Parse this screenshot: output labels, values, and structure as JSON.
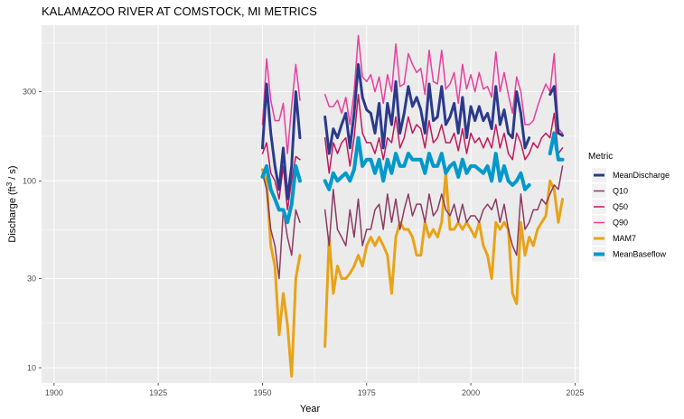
{
  "chart_data": {
    "type": "line",
    "title": "KALAMAZOO RIVER AT COMSTOCK, MI  METRICS",
    "xlabel": "Year",
    "ylabel_main": "Discharge (ft",
    "ylabel_sup": "3",
    "ylabel_tail": " / s)",
    "xlim": [
      1897,
      2026
    ],
    "ylim": [
      8.3,
      680
    ],
    "y_scale": "log",
    "x_ticks": [
      1900,
      1925,
      1950,
      1975,
      2000,
      2025
    ],
    "x_tick_labels": [
      "1900",
      "1925",
      "1950",
      "1975",
      "2000",
      "2025"
    ],
    "y_ticks": [
      10,
      30,
      100,
      300
    ],
    "y_tick_labels": [
      "10",
      "30",
      "100",
      "300"
    ],
    "grid": true,
    "background": "#ebebeb",
    "legend_title": "Metric",
    "legend_position": "right",
    "x": [
      1950,
      1951,
      1952,
      1953,
      1954,
      1955,
      1956,
      1957,
      1958,
      1959,
      1960,
      1961,
      1962,
      1963,
      1964,
      1965,
      1966,
      1967,
      1968,
      1969,
      1970,
      1971,
      1972,
      1973,
      1974,
      1975,
      1976,
      1977,
      1978,
      1979,
      1980,
      1981,
      1982,
      1983,
      1984,
      1985,
      1986,
      1987,
      1988,
      1989,
      1990,
      1991,
      1992,
      1993,
      1994,
      1995,
      1996,
      1997,
      1998,
      1999,
      2000,
      2001,
      2002,
      2003,
      2004,
      2005,
      2006,
      2007,
      2008,
      2009,
      2010,
      2011,
      2012,
      2013,
      2014,
      2015,
      2016,
      2017,
      2018,
      2019,
      2020,
      2021,
      2022
    ],
    "series": [
      {
        "name": "MeanDischarge",
        "color": "#2b3a8b",
        "width": 3,
        "values": [
          150,
          330,
          180,
          120,
          90,
          150,
          80,
          120,
          300,
          170,
          null,
          null,
          null,
          null,
          null,
          220,
          140,
          190,
          170,
          200,
          230,
          150,
          230,
          420,
          280,
          240,
          230,
          180,
          260,
          150,
          260,
          200,
          340,
          180,
          230,
          320,
          250,
          280,
          240,
          180,
          330,
          210,
          220,
          320,
          200,
          220,
          260,
          180,
          280,
          170,
          250,
          210,
          250,
          210,
          230,
          190,
          320,
          200,
          240,
          180,
          170,
          300,
          230,
          150,
          170,
          null,
          null,
          null,
          null,
          290,
          320,
          180,
          175
        ]
      },
      {
        "name": "Q10",
        "color": "#8b3a62",
        "width": 1.5,
        "values": [
          110,
          90,
          55,
          45,
          30,
          70,
          50,
          40,
          70,
          60,
          null,
          null,
          null,
          null,
          null,
          70,
          45,
          90,
          55,
          50,
          45,
          70,
          50,
          80,
          45,
          55,
          55,
          70,
          75,
          55,
          85,
          60,
          80,
          55,
          70,
          85,
          65,
          75,
          75,
          60,
          85,
          65,
          70,
          85,
          70,
          65,
          75,
          60,
          75,
          60,
          65,
          65,
          60,
          70,
          75,
          70,
          80,
          60,
          75,
          55,
          45,
          40,
          85,
          55,
          60,
          70,
          70,
          80,
          75,
          85,
          95,
          90,
          120
        ]
      },
      {
        "name": "Q50",
        "color": "#c2185b",
        "width": 1.5,
        "values": [
          140,
          160,
          110,
          100,
          80,
          120,
          70,
          100,
          135,
          130,
          null,
          null,
          null,
          null,
          null,
          170,
          110,
          160,
          140,
          160,
          170,
          120,
          170,
          290,
          180,
          160,
          160,
          140,
          170,
          130,
          170,
          160,
          220,
          150,
          170,
          220,
          180,
          200,
          190,
          150,
          210,
          160,
          170,
          200,
          160,
          160,
          180,
          145,
          190,
          140,
          180,
          160,
          170,
          150,
          170,
          150,
          200,
          150,
          180,
          140,
          130,
          180,
          160,
          130,
          140,
          160,
          150,
          170,
          180,
          170,
          230,
          140,
          150
        ]
      },
      {
        "name": "Q90",
        "color": "#e83e9e",
        "width": 1.5,
        "values": [
          200,
          450,
          270,
          210,
          210,
          260,
          140,
          250,
          420,
          270,
          null,
          null,
          null,
          null,
          null,
          290,
          250,
          250,
          270,
          230,
          280,
          200,
          300,
          600,
          360,
          340,
          370,
          300,
          360,
          260,
          370,
          300,
          540,
          320,
          330,
          480,
          420,
          380,
          400,
          290,
          500,
          340,
          330,
          500,
          310,
          330,
          380,
          260,
          420,
          310,
          370,
          300,
          380,
          310,
          320,
          280,
          490,
          300,
          380,
          290,
          230,
          360,
          300,
          200,
          200,
          210,
          250,
          290,
          330,
          300,
          480,
          190,
          180
        ]
      },
      {
        "name": "MAM7",
        "color": "#e8a317",
        "width": 3,
        "values": [
          115,
          100,
          45,
          35,
          15,
          25,
          17,
          9,
          30,
          40,
          null,
          null,
          null,
          null,
          null,
          13,
          50,
          25,
          35,
          30,
          30,
          32,
          35,
          40,
          35,
          45,
          50,
          45,
          50,
          45,
          40,
          25,
          50,
          60,
          55,
          55,
          50,
          40,
          40,
          60,
          50,
          55,
          50,
          60,
          110,
          55,
          55,
          60,
          55,
          60,
          55,
          50,
          60,
          45,
          40,
          30,
          60,
          55,
          60,
          55,
          25,
          22,
          60,
          40,
          50,
          45,
          55,
          60,
          65,
          100,
          90,
          60,
          80
        ]
      },
      {
        "name": "MeanBaseflow",
        "color": "#0099cc",
        "width": 4,
        "values": [
          105,
          120,
          90,
          80,
          70,
          70,
          60,
          75,
          120,
          100,
          null,
          null,
          null,
          null,
          null,
          100,
          90,
          110,
          100,
          105,
          110,
          100,
          115,
          170,
          120,
          130,
          130,
          110,
          130,
          100,
          130,
          110,
          140,
          120,
          120,
          140,
          130,
          130,
          130,
          110,
          140,
          120,
          120,
          140,
          110,
          120,
          125,
          105,
          130,
          110,
          120,
          120,
          115,
          110,
          120,
          100,
          140,
          100,
          120,
          100,
          95,
          100,
          110,
          90,
          95,
          null,
          null,
          null,
          null,
          140,
          180,
          130,
          130
        ]
      }
    ]
  }
}
